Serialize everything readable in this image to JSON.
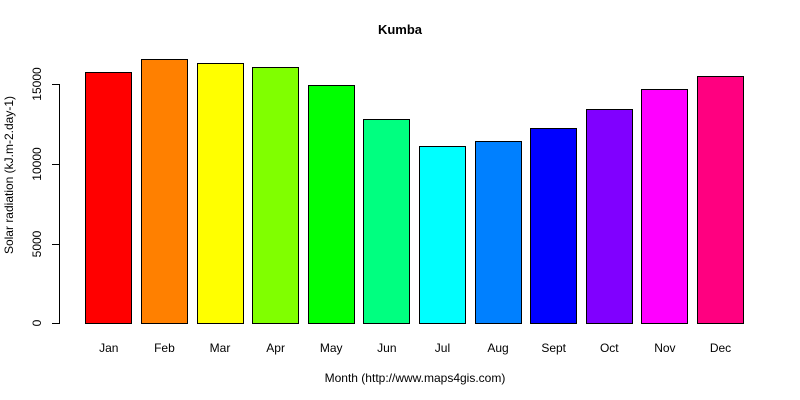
{
  "chart_data": {
    "type": "bar",
    "title": "Kumba",
    "xlabel": "Month (http://www.maps4gis.com)",
    "ylabel": "Solar radiation (kJ.m-2.day-1)",
    "categories": [
      "Jan",
      "Feb",
      "Mar",
      "Apr",
      "May",
      "Jun",
      "Jul",
      "Aug",
      "Sept",
      "Oct",
      "Nov",
      "Dec"
    ],
    "values": [
      15750,
      16570,
      16320,
      16070,
      14940,
      12800,
      11110,
      11420,
      12260,
      13450,
      14700,
      15500
    ],
    "colors": [
      "#FF0000",
      "#FF8000",
      "#FFFF00",
      "#80FF00",
      "#00FF00",
      "#00FF80",
      "#00FFFF",
      "#0080FF",
      "#0000FF",
      "#8000FF",
      "#FF00FF",
      "#FF0080"
    ],
    "ylim": [
      0,
      16570
    ],
    "yticks": [
      0,
      5000,
      10000,
      15000
    ],
    "ytick_labels": [
      "0",
      "5000",
      "10000",
      "15000"
    ],
    "grid": false,
    "legend": "none"
  }
}
